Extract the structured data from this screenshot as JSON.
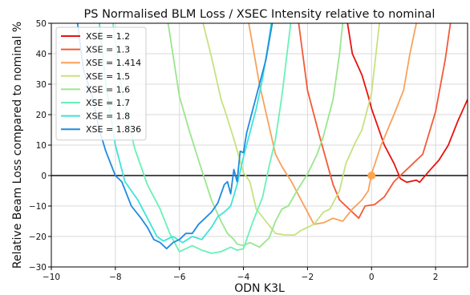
{
  "chart_data": {
    "type": "line",
    "title": "PS Normalised BLM Loss / XSEC Intensity relative to nominal",
    "xlabel": "ODN K3L",
    "ylabel": "Relative Beam Loss compared to nominal %",
    "xlim": [
      -10,
      3
    ],
    "ylim": [
      -30,
      50
    ],
    "xticks": [
      -10,
      -8,
      -6,
      -4,
      -2,
      0,
      2
    ],
    "yticks": [
      -30,
      -20,
      -10,
      0,
      10,
      20,
      30,
      40,
      50
    ],
    "grid": true,
    "legend_position": "top-left",
    "reference_line": {
      "y": 0,
      "color": "#333333"
    },
    "nominal_point": {
      "x": 0,
      "y": 0,
      "color": "#ffa64d"
    },
    "series": [
      {
        "name": "XSE = 1.2",
        "color": "#e8130f",
        "x": [
          -0.9,
          -0.6,
          -0.3,
          -0.1,
          0.0,
          0.2,
          0.4,
          0.7,
          0.9,
          1.1,
          1.4,
          1.5,
          1.8,
          2.1,
          2.4,
          2.7,
          3.0
        ],
        "y": [
          60.0,
          40.0,
          33.0,
          26.0,
          22.0,
          16.0,
          10.0,
          4.0,
          -1.0,
          -2.2,
          -1.5,
          -2.2,
          1.5,
          5.0,
          10.0,
          18.0,
          25.0
        ]
      },
      {
        "name": "XSE = 1.3",
        "color": "#f35a38",
        "x": [
          -2.4,
          -2.0,
          -1.6,
          -1.2,
          -1.0,
          -0.7,
          -0.4,
          -0.2,
          0.1,
          0.4,
          0.7,
          1.0,
          1.3,
          1.6,
          2.0,
          2.3,
          2.6
        ],
        "y": [
          60.0,
          28.0,
          12.0,
          -3.0,
          -8.0,
          -11.0,
          -14.0,
          -10.0,
          -9.5,
          -7.0,
          -2.0,
          1.0,
          4.0,
          7.0,
          21.0,
          38.0,
          60.0
        ]
      },
      {
        "name": "XSE = 1.414",
        "color": "#f9a15b",
        "x": [
          -4.0,
          -3.5,
          -3.0,
          -2.8,
          -2.5,
          -2.2,
          -2.0,
          -1.8,
          -1.5,
          -1.2,
          -0.9,
          -0.6,
          -0.3,
          -0.1,
          0.0,
          0.3,
          0.7,
          1.0,
          1.2,
          1.5
        ],
        "y": [
          60.0,
          30.0,
          7.0,
          3.0,
          -2.0,
          -8.0,
          -12.0,
          -16.0,
          -15.5,
          -14.0,
          -15.0,
          -11.0,
          -8.0,
          -5.0,
          0.5,
          10.0,
          20.0,
          28.0,
          40.0,
          55.0
        ]
      },
      {
        "name": "XSE = 1.5",
        "color": "#c6e27f",
        "x": [
          -5.5,
          -5.0,
          -4.7,
          -4.6,
          -4.3,
          -4.0,
          -3.8,
          -3.6,
          -3.3,
          -3.0,
          -2.7,
          -2.4,
          -2.2,
          -2.0,
          -1.8,
          -1.5,
          -1.3,
          -1.0,
          -0.8,
          -0.5,
          -0.3,
          0.0,
          0.3
        ],
        "y": [
          60.0,
          39.0,
          25.0,
          22.0,
          12.0,
          1.0,
          -2.0,
          -11.0,
          -15.0,
          -19.0,
          -19.5,
          -19.5,
          -18.0,
          -17.0,
          -16.0,
          -12.0,
          -11.0,
          -5.0,
          4.0,
          11.0,
          15.0,
          27.0,
          55.0
        ]
      },
      {
        "name": "XSE = 1.6",
        "color": "#9be58e",
        "x": [
          -6.5,
          -6.0,
          -5.7,
          -5.4,
          -5.0,
          -4.7,
          -4.5,
          -4.3,
          -4.2,
          -4.0,
          -3.8,
          -3.5,
          -3.2,
          -3.0,
          -2.8,
          -2.6,
          -2.3,
          -2.0,
          -1.7,
          -1.5,
          -1.2,
          -1.0,
          -0.8
        ],
        "y": [
          60.0,
          26.0,
          15.0,
          5.0,
          -8.0,
          -15.0,
          -19.0,
          -21.0,
          -22.5,
          -23.0,
          -22.0,
          -23.5,
          -20.5,
          -15.0,
          -11.0,
          -10.0,
          -4.5,
          0.5,
          7.0,
          13.0,
          25.0,
          40.0,
          60.0
        ]
      },
      {
        "name": "XSE = 1.7",
        "color": "#6af0b8",
        "x": [
          -8.2,
          -7.8,
          -7.4,
          -7.0,
          -6.6,
          -6.3,
          -6.0,
          -5.8,
          -5.6,
          -5.3,
          -5.0,
          -4.7,
          -4.4,
          -4.2,
          -4.0,
          -3.7,
          -3.4,
          -3.2,
          -3.0,
          -2.8,
          -2.5
        ],
        "y": [
          60.0,
          28.0,
          9.0,
          -3.0,
          -11.0,
          -19.0,
          -25.0,
          -24.0,
          -23.0,
          -24.5,
          -25.5,
          -25.0,
          -23.5,
          -24.5,
          -24.0,
          -15.0,
          -7.0,
          3.0,
          12.0,
          26.0,
          52.0
        ]
      },
      {
        "name": "XSE = 1.8",
        "color": "#3ee4d8",
        "x": [
          -8.6,
          -8.3,
          -8.0,
          -7.7,
          -7.3,
          -7.0,
          -6.7,
          -6.5,
          -6.2,
          -5.9,
          -5.6,
          -5.3,
          -5.0,
          -4.8,
          -4.6,
          -4.4,
          -4.2,
          -4.0,
          -3.8,
          -3.6,
          -3.4,
          -3.2,
          -3.0
        ],
        "y": [
          60.0,
          30.0,
          10.0,
          -2.0,
          -8.0,
          -14.0,
          -20.0,
          -21.5,
          -20.0,
          -22.0,
          -20.0,
          -21.0,
          -17.0,
          -13.5,
          -12.0,
          -10.0,
          -3.0,
          6.0,
          14.0,
          22.0,
          32.0,
          45.0,
          60.0
        ]
      },
      {
        "name": "XSE = 1.836",
        "color": "#1f8be0",
        "x": [
          -9.3,
          -9.0,
          -8.7,
          -8.5,
          -8.3,
          -8.0,
          -7.8,
          -7.5,
          -7.2,
          -7.0,
          -6.8,
          -6.6,
          -6.4,
          -6.2,
          -6.0,
          -5.8,
          -5.6,
          -5.4,
          -5.2,
          -5.0,
          -4.8,
          -4.6,
          -4.5,
          -4.4,
          -4.3,
          -4.2,
          -4.1,
          -4.0,
          -3.9,
          -3.7,
          -3.5,
          -3.3,
          -3.1,
          -3.0
        ],
        "y": [
          60.0,
          35.0,
          25.0,
          15.0,
          8.0,
          0.0,
          -2.0,
          -10.0,
          -14.0,
          -17.0,
          -21.0,
          -22.0,
          -24.0,
          -22.0,
          -21.0,
          -19.0,
          -19.0,
          -16.0,
          -14.0,
          -12.0,
          -9.0,
          -3.0,
          -2.0,
          -6.0,
          2.0,
          -2.0,
          8.0,
          7.5,
          14.0,
          22.0,
          30.0,
          38.0,
          50.0,
          60.0
        ]
      }
    ]
  }
}
